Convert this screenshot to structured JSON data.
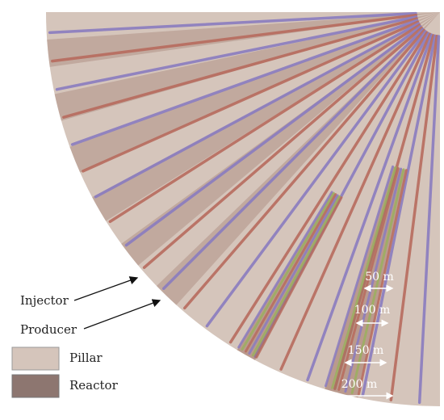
{
  "labels": {
    "injector": "Injector",
    "producer": "Producer"
  },
  "legend": [
    {
      "label": "Pillar"
    },
    {
      "label": "Reactor"
    }
  ],
  "scale": [
    "50 m",
    "100 m",
    "150 m",
    "200 m"
  ]
}
